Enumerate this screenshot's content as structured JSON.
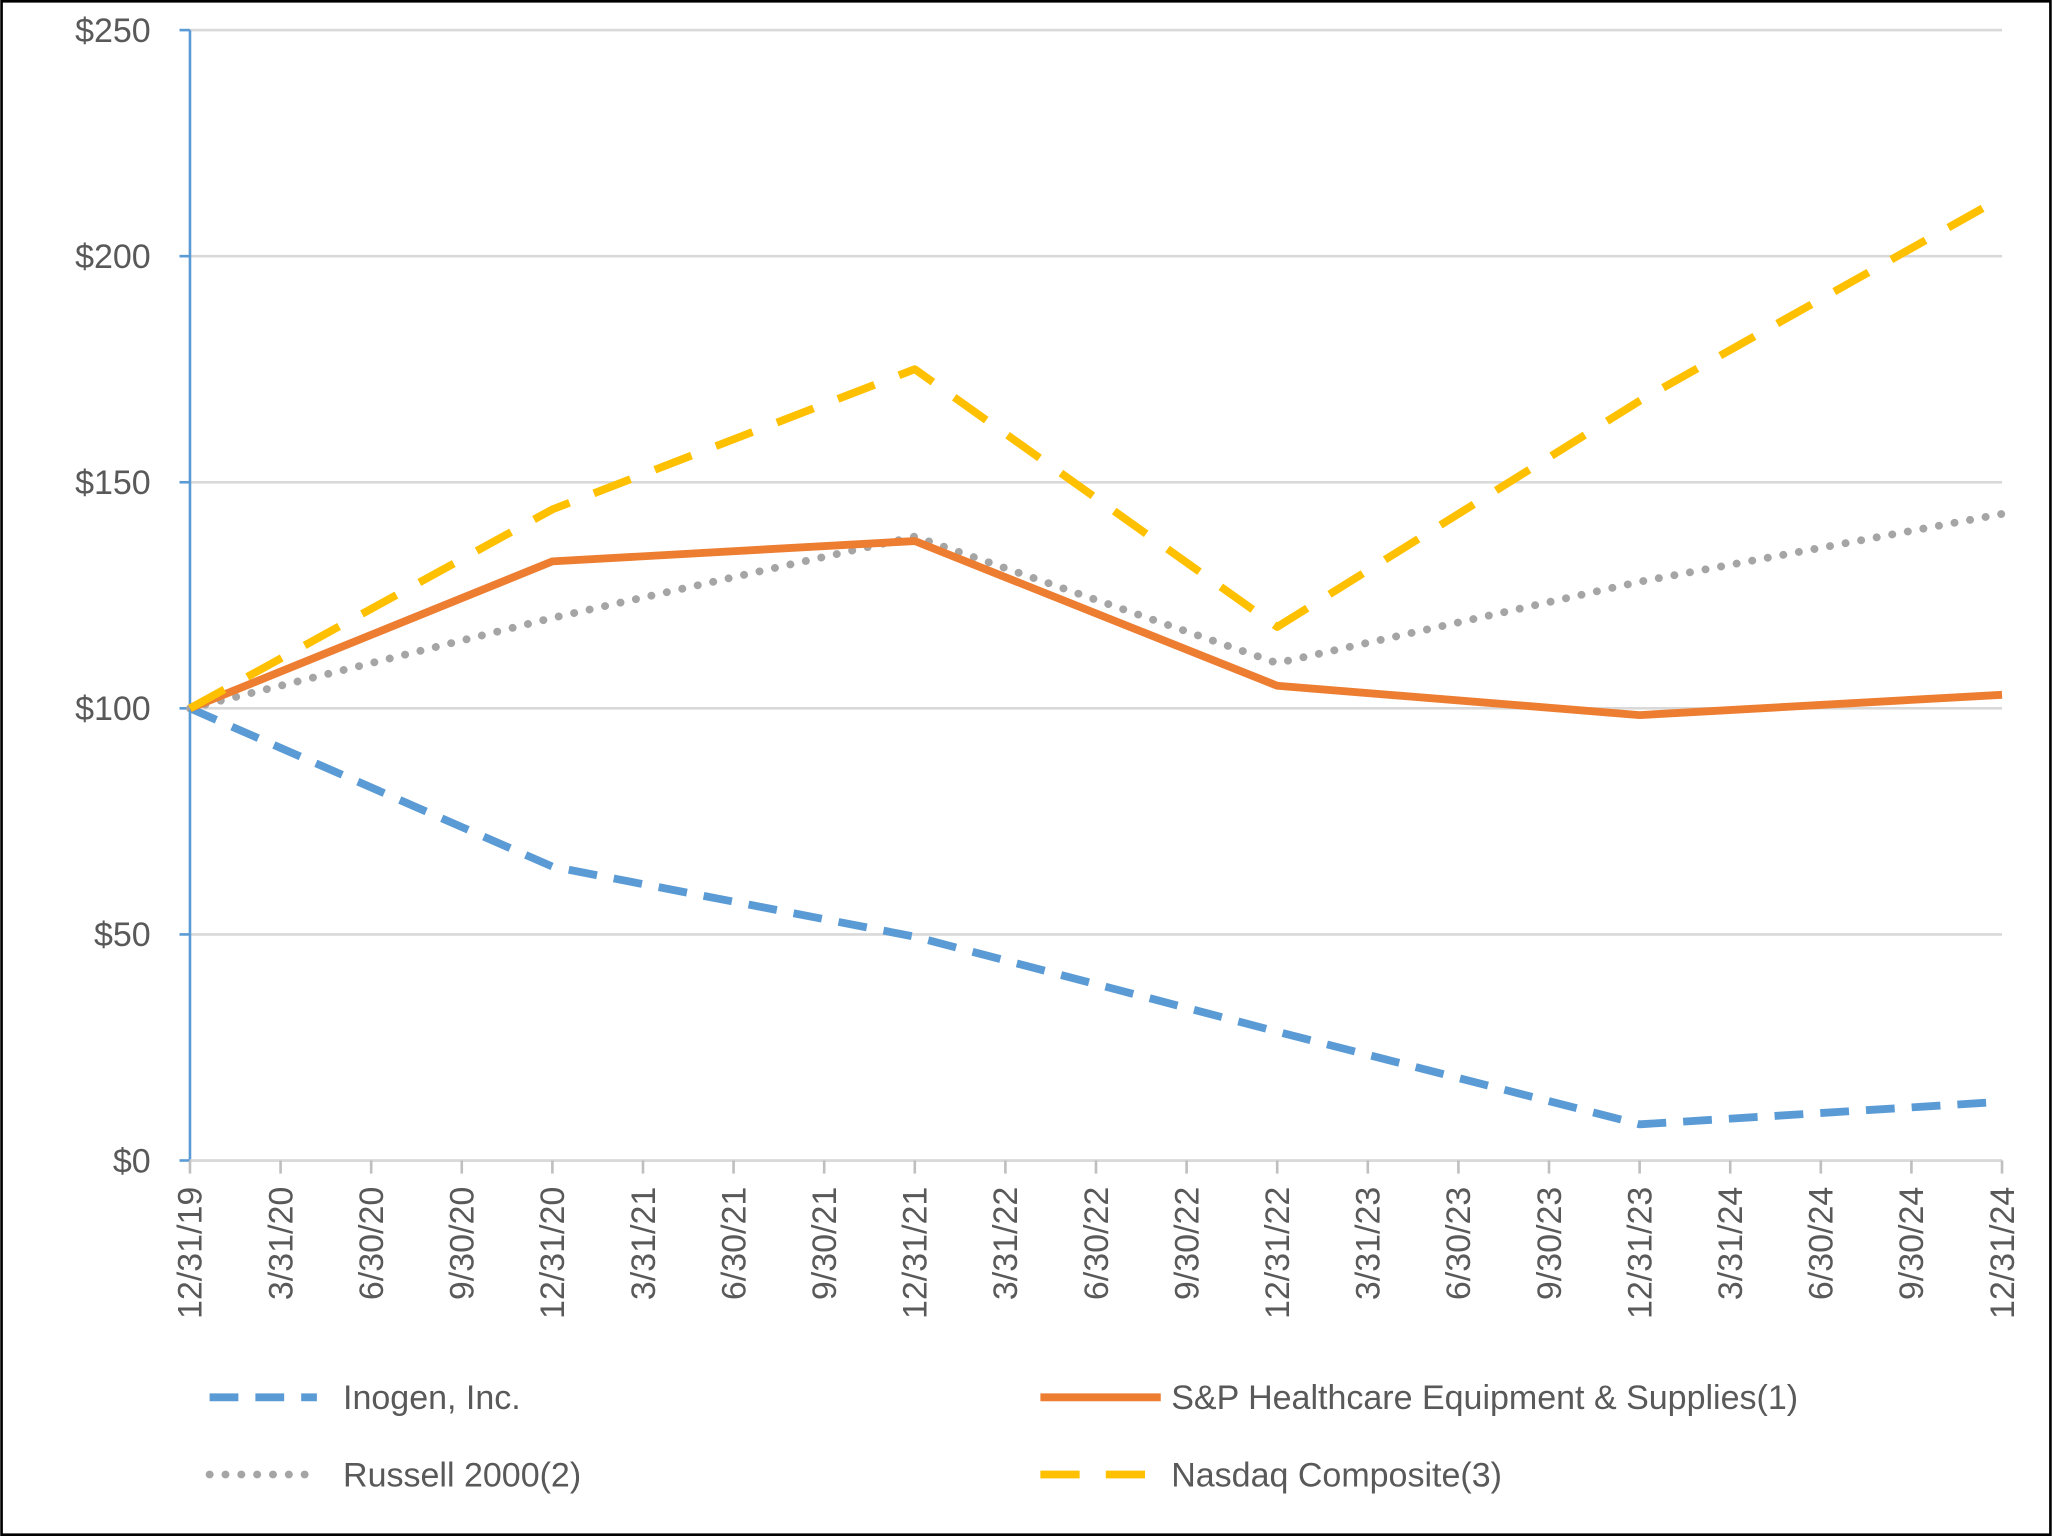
{
  "chart_data": {
    "type": "line",
    "categories": [
      "12/31/19",
      "3/31/20",
      "6/30/20",
      "9/30/20",
      "12/31/20",
      "3/31/21",
      "6/30/21",
      "9/30/21",
      "12/31/21",
      "3/31/22",
      "6/30/22",
      "9/30/22",
      "12/31/22",
      "3/31/23",
      "6/30/23",
      "9/30/23",
      "12/31/23",
      "3/31/24",
      "6/30/24",
      "9/30/24",
      "12/31/24"
    ],
    "x": [
      "12/31/19",
      "12/31/20",
      "12/31/21",
      "12/31/22",
      "12/31/23",
      "12/31/24"
    ],
    "series": [
      {
        "name": "Inogen, Inc.",
        "color": "#5b9bd5",
        "values": [
          100,
          65,
          49.5,
          28.5,
          8,
          13
        ]
      },
      {
        "name": "S&P Healthcare Equipment & Supplies(1)",
        "color": "#ed7d31",
        "values": [
          100,
          132.5,
          137,
          105,
          98.5,
          103
        ]
      },
      {
        "name": "Russell 2000(2)",
        "color": "#a5a5a5",
        "values": [
          100,
          120,
          138,
          110,
          128,
          143
        ]
      },
      {
        "name": "Nasdaq Composite(3)",
        "color": "#ffc000",
        "values": [
          100,
          144,
          175,
          118,
          168,
          213
        ]
      }
    ],
    "ylim": [
      0,
      250
    ],
    "yticks": [
      {
        "value": 0,
        "label": "$0"
      },
      {
        "value": 50,
        "label": "$50"
      },
      {
        "value": 100,
        "label": "$100"
      },
      {
        "value": 150,
        "label": "$150"
      },
      {
        "value": 200,
        "label": "$200"
      },
      {
        "value": 250,
        "label": "$250"
      }
    ],
    "grid": true
  }
}
